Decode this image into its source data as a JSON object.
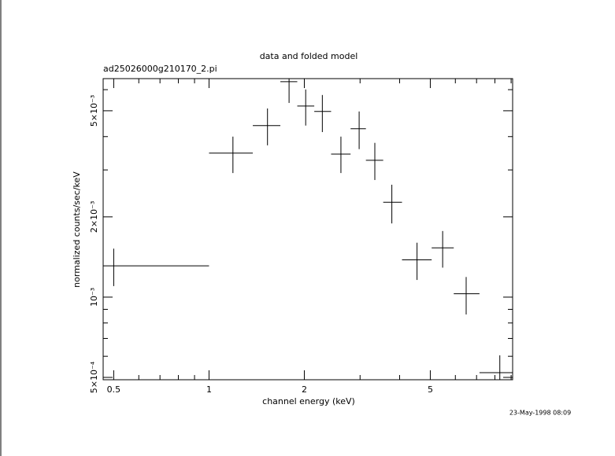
{
  "chart_data": {
    "type": "errorcross",
    "title": "data and folded model",
    "subtitle": "ad25026000g210170_2.pi",
    "x_label": "channel energy (keV)",
    "y_label": "normalized counts/sec/keV",
    "timestamp": "23-May-1998 08:09",
    "log_x": true,
    "log_y": true,
    "color": "#000000",
    "xlim": [
      0.463,
      9.1
    ],
    "ylim": [
      0.00049,
      0.0066
    ],
    "xticks": [
      0.5,
      1,
      2,
      5
    ],
    "xminorticks": [
      0.6,
      0.7,
      0.8,
      0.9,
      3,
      4,
      6,
      7,
      8,
      9
    ],
    "yticks": [
      {
        "value": 0.0005,
        "label": "5×10⁻⁴"
      },
      {
        "value": 0.001,
        "label": "10⁻³"
      },
      {
        "value": 0.002,
        "label": "2×10⁻³"
      },
      {
        "value": 0.005,
        "label": "5×10⁻³"
      }
    ],
    "yminorticks": [
      0.0006,
      0.0007,
      0.0008,
      0.0009,
      0.003,
      0.004,
      0.006
    ],
    "series": [
      {
        "name": "data",
        "x": [
          0.5,
          1.19,
          1.53,
          1.79,
          2.02,
          2.28,
          2.61,
          2.98,
          3.34,
          3.78,
          4.54,
          5.47,
          6.49,
          8.29
        ],
        "x_low": [
          0.463,
          1.0,
          1.375,
          1.68,
          1.9,
          2.15,
          2.43,
          2.8,
          3.13,
          3.55,
          4.07,
          5.05,
          5.93,
          7.15
        ],
        "x_high": [
          1.0,
          1.375,
          1.68,
          1.9,
          2.15,
          2.43,
          2.8,
          3.13,
          3.55,
          4.07,
          5.05,
          5.93,
          7.15,
          9.1
        ],
        "y": [
          0.00131,
          0.00347,
          0.0044,
          0.00643,
          0.00521,
          0.00497,
          0.00344,
          0.00428,
          0.00326,
          0.00227,
          0.00138,
          0.00153,
          0.00103,
          0.000521
        ],
        "y_low": [
          0.0011,
          0.00292,
          0.00371,
          0.00535,
          0.0044,
          0.00416,
          0.00292,
          0.00359,
          0.00275,
          0.00189,
          0.00116,
          0.00129,
          0.000861,
          0.00045
        ],
        "y_high": [
          0.00152,
          0.004,
          0.0051,
          0.0066,
          0.00601,
          0.00573,
          0.004,
          0.00497,
          0.00379,
          0.00264,
          0.0016,
          0.00177,
          0.00119,
          0.000605
        ]
      }
    ]
  }
}
